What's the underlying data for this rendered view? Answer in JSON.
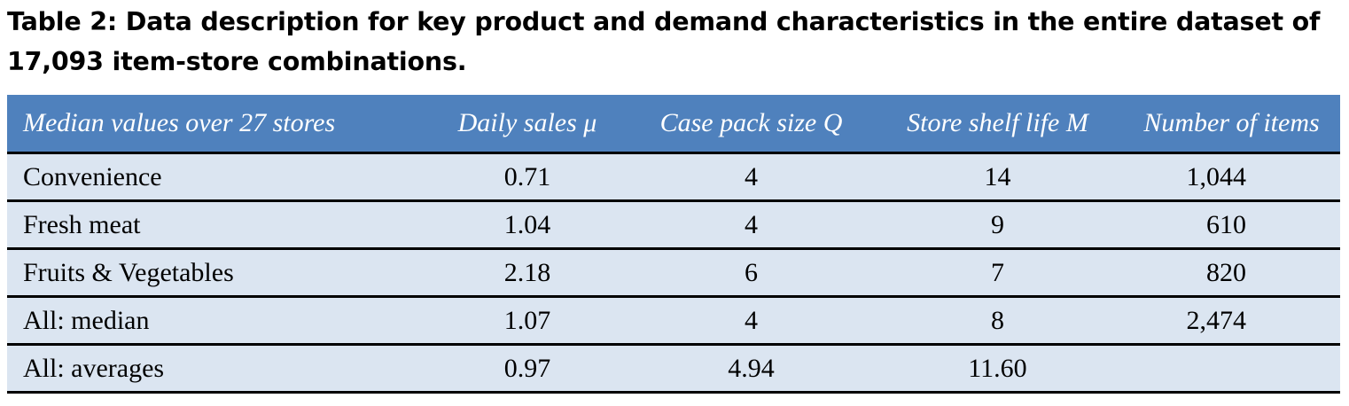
{
  "caption": {
    "line1": "Table 2: Data description for key product and demand characteristics in the entire dataset of",
    "line2": "17,093 item-store combinations."
  },
  "table": {
    "headers": [
      "Median values over 27 stores",
      "Daily sales μ",
      "Case pack size Q",
      "Store shelf life M",
      "Number of items"
    ],
    "rows": [
      [
        "Convenience",
        "0.71",
        "4",
        "14",
        "1,044"
      ],
      [
        "Fresh meat",
        "1.04",
        "4",
        "9",
        "610"
      ],
      [
        "Fruits & Vegetables",
        "2.18",
        "6",
        "7",
        "820"
      ],
      [
        "All: median",
        "1.07",
        "4",
        "8",
        "2,474"
      ],
      [
        "All: averages",
        "0.97",
        "4.94",
        "11.60",
        ""
      ]
    ]
  },
  "colors": {
    "header_bg": "#4f81bd",
    "row_bg": "#dbe5f1",
    "rule": "#000000"
  }
}
